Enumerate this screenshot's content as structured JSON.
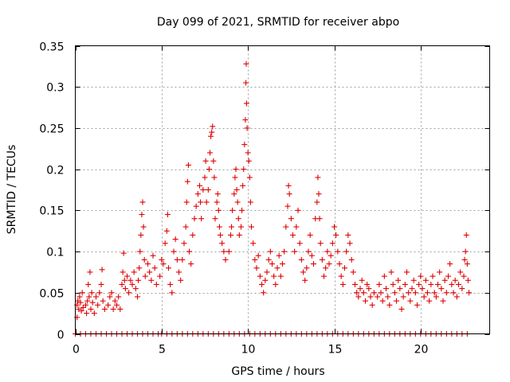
{
  "chart_data": {
    "type": "scatter",
    "title": "Day 099 of 2021, SRMTID for receiver abpo",
    "xlabel": "GPS time / hours",
    "ylabel": "SRMTID / TECUs",
    "xlim": [
      0,
      24
    ],
    "ylim": [
      0,
      0.35
    ],
    "xticks": [
      0,
      5,
      10,
      15,
      20
    ],
    "xtick_labels": [
      "0",
      "5",
      "10",
      "15",
      "20"
    ],
    "yticks": [
      0,
      0.05,
      0.1,
      0.15,
      0.2,
      0.25,
      0.3,
      0.35
    ],
    "ytick_labels": [
      "0",
      "0.05",
      "0.1",
      "0.15",
      "0.2",
      "0.25",
      "0.3",
      "0.35"
    ],
    "grid": true,
    "marker": "+",
    "color": "#e00000",
    "series": [
      {
        "name": "SRMTID",
        "points": [
          [
            0.1,
            0.035
          ],
          [
            0.1,
            0.02
          ],
          [
            0.15,
            0.04
          ],
          [
            0.2,
            0.03
          ],
          [
            0.25,
            0.045
          ],
          [
            0.3,
            0.038
          ],
          [
            0.35,
            0.028
          ],
          [
            0.4,
            0.05
          ],
          [
            0.45,
            0.032
          ],
          [
            0.6,
            0.035
          ],
          [
            0.65,
            0.025
          ],
          [
            0.7,
            0.04
          ],
          [
            0.75,
            0.06
          ],
          [
            0.8,
            0.045
          ],
          [
            0.85,
            0.075
          ],
          [
            0.9,
            0.03
          ],
          [
            0.95,
            0.05
          ],
          [
            1.0,
            0.038
          ],
          [
            1.1,
            0.025
          ],
          [
            1.2,
            0.045
          ],
          [
            1.3,
            0.035
          ],
          [
            1.4,
            0.05
          ],
          [
            1.5,
            0.06
          ],
          [
            1.55,
            0.078
          ],
          [
            1.6,
            0.04
          ],
          [
            1.7,
            0.03
          ],
          [
            1.9,
            0.035
          ],
          [
            2.0,
            0.045
          ],
          [
            2.1,
            0.05
          ],
          [
            2.2,
            0.03
          ],
          [
            2.3,
            0.04
          ],
          [
            2.4,
            0.035
          ],
          [
            2.5,
            0.045
          ],
          [
            2.6,
            0.03
          ],
          [
            2.7,
            0.06
          ],
          [
            2.75,
            0.075
          ],
          [
            2.8,
            0.098
          ],
          [
            2.85,
            0.065
          ],
          [
            2.9,
            0.055
          ],
          [
            3.0,
            0.07
          ],
          [
            3.1,
            0.05
          ],
          [
            3.2,
            0.065
          ],
          [
            3.3,
            0.06
          ],
          [
            3.4,
            0.075
          ],
          [
            3.5,
            0.055
          ],
          [
            3.6,
            0.045
          ],
          [
            3.65,
            0.065
          ],
          [
            3.7,
            0.08
          ],
          [
            3.75,
            0.1
          ],
          [
            3.8,
            0.12
          ],
          [
            3.85,
            0.145
          ],
          [
            3.9,
            0.16
          ],
          [
            3.95,
            0.13
          ],
          [
            4.0,
            0.09
          ],
          [
            4.05,
            0.07
          ],
          [
            4.2,
            0.085
          ],
          [
            4.3,
            0.075
          ],
          [
            4.4,
            0.065
          ],
          [
            4.5,
            0.095
          ],
          [
            4.6,
            0.08
          ],
          [
            4.7,
            0.06
          ],
          [
            4.9,
            0.07
          ],
          [
            5.0,
            0.09
          ],
          [
            5.1,
            0.085
          ],
          [
            5.2,
            0.11
          ],
          [
            5.3,
            0.125
          ],
          [
            5.35,
            0.145
          ],
          [
            5.4,
            0.08
          ],
          [
            5.5,
            0.06
          ],
          [
            5.6,
            0.05
          ],
          [
            5.7,
            0.1
          ],
          [
            5.8,
            0.115
          ],
          [
            5.9,
            0.09
          ],
          [
            6.0,
            0.075
          ],
          [
            6.1,
            0.065
          ],
          [
            6.2,
            0.09
          ],
          [
            6.3,
            0.11
          ],
          [
            6.4,
            0.13
          ],
          [
            6.45,
            0.16
          ],
          [
            6.5,
            0.185
          ],
          [
            6.55,
            0.205
          ],
          [
            6.6,
            0.1
          ],
          [
            6.7,
            0.085
          ],
          [
            6.8,
            0.12
          ],
          [
            6.9,
            0.14
          ],
          [
            7.0,
            0.155
          ],
          [
            7.1,
            0.17
          ],
          [
            7.2,
            0.18
          ],
          [
            7.25,
            0.16
          ],
          [
            7.3,
            0.14
          ],
          [
            7.4,
            0.175
          ],
          [
            7.5,
            0.19
          ],
          [
            7.55,
            0.21
          ],
          [
            7.6,
            0.16
          ],
          [
            7.7,
            0.175
          ],
          [
            7.75,
            0.2
          ],
          [
            7.8,
            0.22
          ],
          [
            7.85,
            0.24
          ],
          [
            7.9,
            0.245
          ],
          [
            7.95,
            0.252
          ],
          [
            8.0,
            0.21
          ],
          [
            8.05,
            0.19
          ],
          [
            8.1,
            0.14
          ],
          [
            8.2,
            0.16
          ],
          [
            8.25,
            0.17
          ],
          [
            8.3,
            0.15
          ],
          [
            8.35,
            0.13
          ],
          [
            8.4,
            0.12
          ],
          [
            8.5,
            0.11
          ],
          [
            8.6,
            0.1
          ],
          [
            8.7,
            0.09
          ],
          [
            8.9,
            0.1
          ],
          [
            9.0,
            0.12
          ],
          [
            9.05,
            0.13
          ],
          [
            9.1,
            0.15
          ],
          [
            9.2,
            0.17
          ],
          [
            9.25,
            0.19
          ],
          [
            9.3,
            0.2
          ],
          [
            9.35,
            0.175
          ],
          [
            9.4,
            0.16
          ],
          [
            9.45,
            0.14
          ],
          [
            9.5,
            0.12
          ],
          [
            9.6,
            0.13
          ],
          [
            9.65,
            0.15
          ],
          [
            9.7,
            0.18
          ],
          [
            9.75,
            0.2
          ],
          [
            9.8,
            0.23
          ],
          [
            9.85,
            0.26
          ],
          [
            9.88,
            0.305
          ],
          [
            9.9,
            0.328
          ],
          [
            9.92,
            0.28
          ],
          [
            9.95,
            0.25
          ],
          [
            10.0,
            0.22
          ],
          [
            10.05,
            0.21
          ],
          [
            10.1,
            0.19
          ],
          [
            10.15,
            0.16
          ],
          [
            10.2,
            0.13
          ],
          [
            10.3,
            0.11
          ],
          [
            10.4,
            0.09
          ],
          [
            10.5,
            0.08
          ],
          [
            10.6,
            0.095
          ],
          [
            10.7,
            0.07
          ],
          [
            10.8,
            0.06
          ],
          [
            10.9,
            0.05
          ],
          [
            11.0,
            0.065
          ],
          [
            11.1,
            0.075
          ],
          [
            11.2,
            0.09
          ],
          [
            11.3,
            0.1
          ],
          [
            11.4,
            0.085
          ],
          [
            11.5,
            0.07
          ],
          [
            11.6,
            0.06
          ],
          [
            11.7,
            0.08
          ],
          [
            11.8,
            0.095
          ],
          [
            11.9,
            0.07
          ],
          [
            12.0,
            0.085
          ],
          [
            12.1,
            0.1
          ],
          [
            12.2,
            0.13
          ],
          [
            12.3,
            0.155
          ],
          [
            12.35,
            0.18
          ],
          [
            12.4,
            0.17
          ],
          [
            12.5,
            0.14
          ],
          [
            12.6,
            0.12
          ],
          [
            12.7,
            0.1
          ],
          [
            12.8,
            0.13
          ],
          [
            12.9,
            0.15
          ],
          [
            13.0,
            0.11
          ],
          [
            13.1,
            0.09
          ],
          [
            13.2,
            0.075
          ],
          [
            13.3,
            0.065
          ],
          [
            13.4,
            0.08
          ],
          [
            13.5,
            0.1
          ],
          [
            13.6,
            0.12
          ],
          [
            13.7,
            0.095
          ],
          [
            13.8,
            0.085
          ],
          [
            13.9,
            0.14
          ],
          [
            14.0,
            0.16
          ],
          [
            14.05,
            0.19
          ],
          [
            14.1,
            0.17
          ],
          [
            14.15,
            0.14
          ],
          [
            14.2,
            0.11
          ],
          [
            14.3,
            0.09
          ],
          [
            14.4,
            0.07
          ],
          [
            14.5,
            0.08
          ],
          [
            14.6,
            0.1
          ],
          [
            14.7,
            0.085
          ],
          [
            14.8,
            0.095
          ],
          [
            14.9,
            0.11
          ],
          [
            15.0,
            0.13
          ],
          [
            15.1,
            0.12
          ],
          [
            15.2,
            0.1
          ],
          [
            15.3,
            0.085
          ],
          [
            15.4,
            0.07
          ],
          [
            15.5,
            0.06
          ],
          [
            15.6,
            0.08
          ],
          [
            15.7,
            0.1
          ],
          [
            15.8,
            0.12
          ],
          [
            15.9,
            0.11
          ],
          [
            16.0,
            0.09
          ],
          [
            16.1,
            0.075
          ],
          [
            16.2,
            0.06
          ],
          [
            16.3,
            0.05
          ],
          [
            16.4,
            0.045
          ],
          [
            16.5,
            0.055
          ],
          [
            16.6,
            0.065
          ],
          [
            16.7,
            0.05
          ],
          [
            16.8,
            0.04
          ],
          [
            16.9,
            0.06
          ],
          [
            17.0,
            0.055
          ],
          [
            17.1,
            0.045
          ],
          [
            17.2,
            0.035
          ],
          [
            17.3,
            0.05
          ],
          [
            17.5,
            0.045
          ],
          [
            17.6,
            0.06
          ],
          [
            17.7,
            0.05
          ],
          [
            17.8,
            0.04
          ],
          [
            17.9,
            0.07
          ],
          [
            18.0,
            0.055
          ],
          [
            18.1,
            0.045
          ],
          [
            18.2,
            0.035
          ],
          [
            18.3,
            0.075
          ],
          [
            18.4,
            0.06
          ],
          [
            18.5,
            0.05
          ],
          [
            18.6,
            0.04
          ],
          [
            18.7,
            0.065
          ],
          [
            18.8,
            0.055
          ],
          [
            18.9,
            0.03
          ],
          [
            19.0,
            0.045
          ],
          [
            19.1,
            0.06
          ],
          [
            19.2,
            0.075
          ],
          [
            19.3,
            0.05
          ],
          [
            19.4,
            0.04
          ],
          [
            19.5,
            0.055
          ],
          [
            19.6,
            0.065
          ],
          [
            19.7,
            0.05
          ],
          [
            19.8,
            0.035
          ],
          [
            19.9,
            0.06
          ],
          [
            20.0,
            0.07
          ],
          [
            20.1,
            0.055
          ],
          [
            20.2,
            0.045
          ],
          [
            20.3,
            0.065
          ],
          [
            20.4,
            0.05
          ],
          [
            20.5,
            0.04
          ],
          [
            20.6,
            0.06
          ],
          [
            20.7,
            0.07
          ],
          [
            20.8,
            0.05
          ],
          [
            20.9,
            0.045
          ],
          [
            21.0,
            0.06
          ],
          [
            21.1,
            0.075
          ],
          [
            21.2,
            0.055
          ],
          [
            21.3,
            0.04
          ],
          [
            21.4,
            0.065
          ],
          [
            21.5,
            0.05
          ],
          [
            21.6,
            0.07
          ],
          [
            21.7,
            0.085
          ],
          [
            21.8,
            0.06
          ],
          [
            21.9,
            0.05
          ],
          [
            22.0,
            0.065
          ],
          [
            22.1,
            0.045
          ],
          [
            22.2,
            0.06
          ],
          [
            22.3,
            0.075
          ],
          [
            22.4,
            0.055
          ],
          [
            22.5,
            0.07
          ],
          [
            22.55,
            0.09
          ],
          [
            22.6,
            0.1
          ],
          [
            22.65,
            0.12
          ],
          [
            22.7,
            0.085
          ],
          [
            22.75,
            0.065
          ],
          [
            22.8,
            0.05
          ]
        ],
        "zero_points_x": [
          0,
          0.3,
          0.6,
          0.9,
          1.2,
          1.5,
          1.8,
          2.1,
          2.4,
          2.7,
          3.0,
          3.3,
          3.6,
          3.9,
          4.2,
          4.5,
          4.8,
          5.0,
          5.3,
          5.6,
          5.9,
          6.2,
          6.5,
          6.8,
          7.1,
          7.4,
          7.7,
          8.0,
          8.3,
          8.6,
          8.9,
          9.2,
          9.5,
          9.8,
          10.1,
          10.4,
          10.7,
          11.0,
          11.3,
          11.6,
          11.9,
          12.2,
          12.5,
          12.8,
          13.1,
          13.4,
          13.7,
          14.0,
          14.3,
          14.6,
          14.9,
          15.2,
          15.5,
          15.8,
          16.1,
          16.4,
          16.7,
          17.0,
          17.3,
          17.6,
          17.9,
          18.2,
          18.5,
          18.8,
          19.1,
          19.4,
          19.7,
          20.0,
          20.3,
          20.6,
          20.9,
          21.2,
          21.5,
          21.8,
          22.1,
          22.4,
          22.7
        ]
      }
    ]
  }
}
